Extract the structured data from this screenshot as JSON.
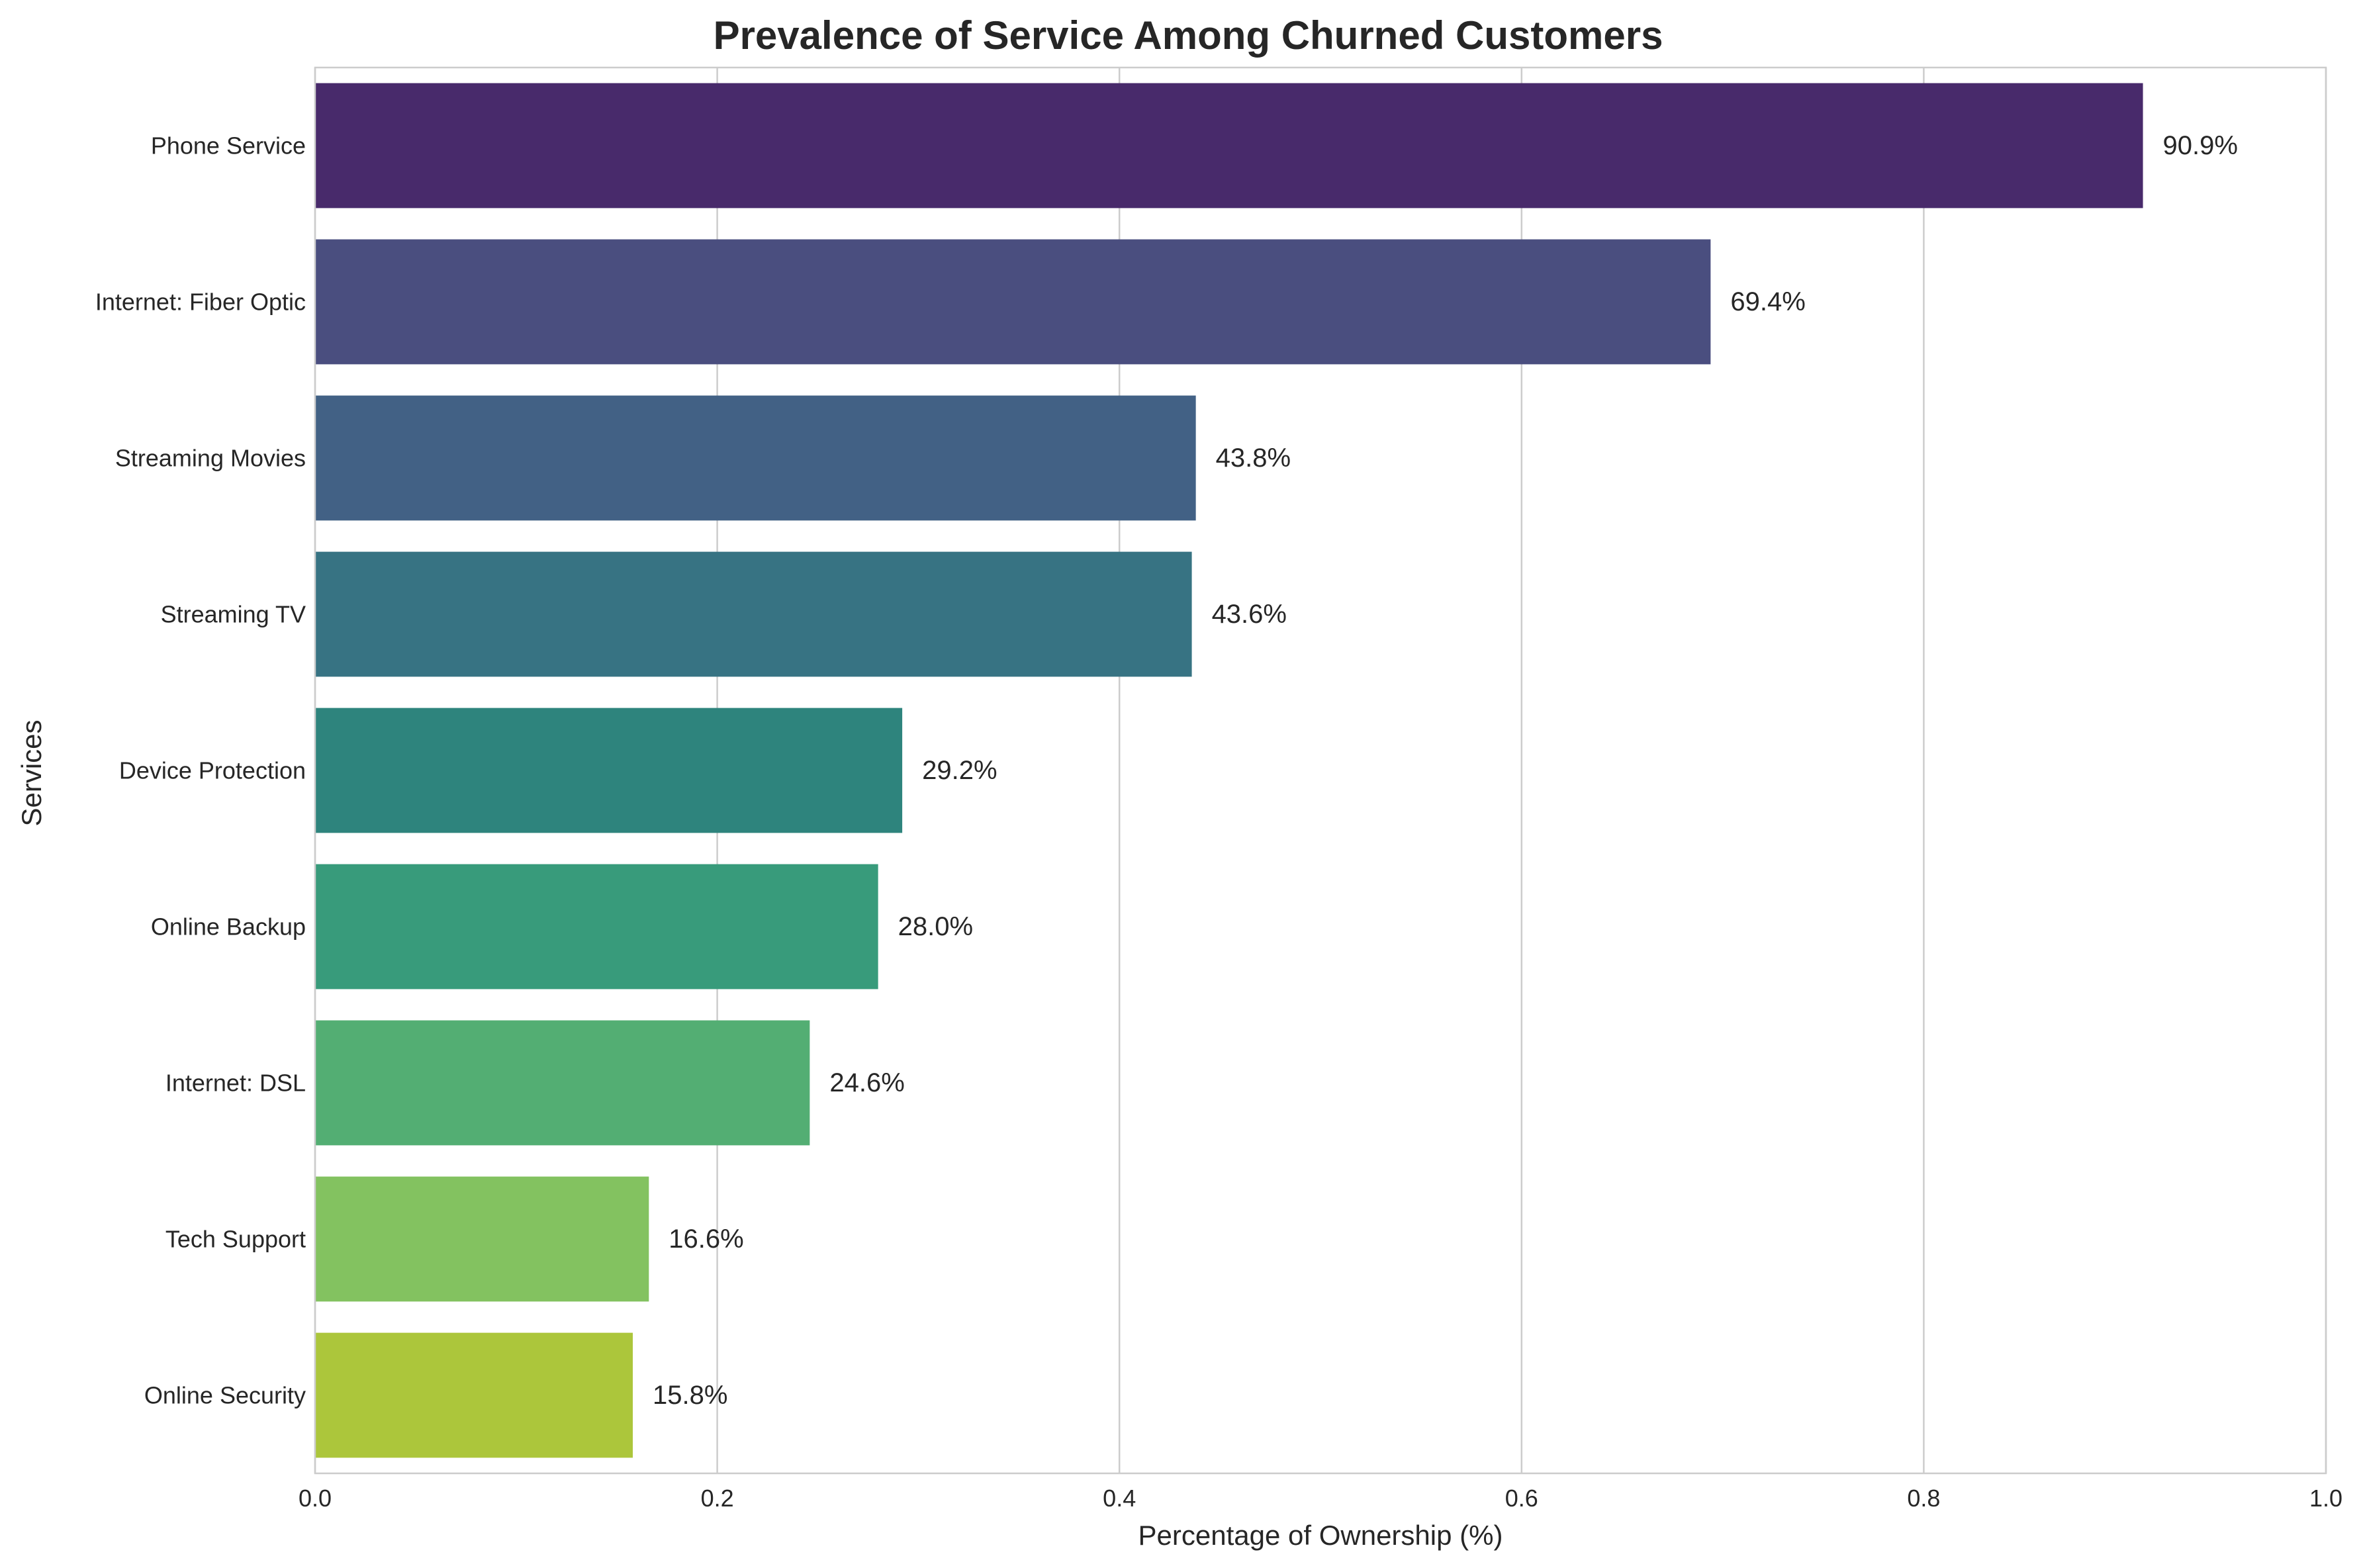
{
  "chart_data": {
    "type": "bar",
    "orientation": "horizontal",
    "title": "Prevalence of Service Among Churned Customers",
    "xlabel": "Percentage of Ownership (%)",
    "ylabel": "Services",
    "xlim": [
      0,
      1.0
    ],
    "xticks": [
      0.0,
      0.2,
      0.4,
      0.6,
      0.8,
      1.0
    ],
    "xtick_labels": [
      "0.0",
      "0.2",
      "0.4",
      "0.6",
      "0.8",
      "1.0"
    ],
    "grid": true,
    "categories": [
      "Phone Service",
      "Internet: Fiber Optic",
      "Streaming Movies",
      "Streaming TV",
      "Device Protection",
      "Online Backup",
      "Internet: DSL",
      "Tech Support",
      "Online Security"
    ],
    "values": [
      0.909,
      0.694,
      0.438,
      0.436,
      0.292,
      0.28,
      0.246,
      0.166,
      0.158
    ],
    "value_labels": [
      "90.9%",
      "69.4%",
      "43.8%",
      "43.6%",
      "29.2%",
      "28.0%",
      "24.6%",
      "16.6%",
      "15.8%"
    ],
    "colors": [
      "#482a6b",
      "#4a4e7f",
      "#426185",
      "#377383",
      "#2e847d",
      "#389b7b",
      "#53ae73",
      "#83c260",
      "#acc63b"
    ]
  }
}
